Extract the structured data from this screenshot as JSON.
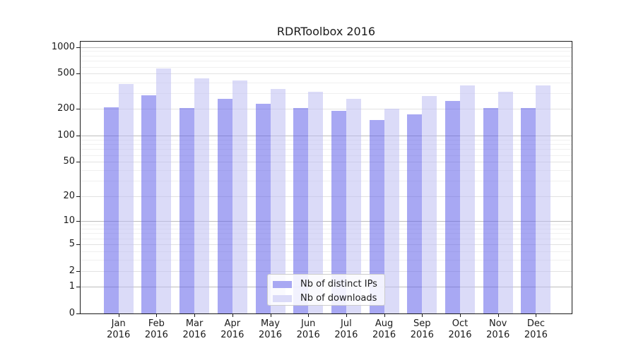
{
  "chart_data": {
    "type": "bar",
    "title": "RDRToolbox 2016",
    "xlabel": "",
    "ylabel": "",
    "x_months": [
      "Jan",
      "Feb",
      "Mar",
      "Apr",
      "May",
      "Jun",
      "Jul",
      "Aug",
      "Sep",
      "Oct",
      "Nov",
      "Dec"
    ],
    "x_year": "2016",
    "series": [
      {
        "name": "Nb of distinct IPs",
        "color": "#a8a8f3",
        "values": [
          210,
          285,
          205,
          260,
          230,
          205,
          190,
          150,
          175,
          245,
          205,
          205
        ]
      },
      {
        "name": "Nb of downloads",
        "color": "#dbdbf8",
        "values": [
          380,
          570,
          445,
          420,
          335,
          315,
          260,
          200,
          280,
          370,
          315,
          370
        ]
      }
    ],
    "y_ticks": [
      1000,
      500,
      200,
      100,
      50,
      20,
      10,
      5,
      2,
      1,
      0
    ],
    "y_scale": "log-like (position proportional to log10(1+value))",
    "ylim": [
      0,
      1150
    ],
    "grid": "horizontal major + minor gridlines, light gray",
    "legend": {
      "position": "lower center",
      "entries": [
        "Nb of distinct IPs",
        "Nb of downloads"
      ]
    }
  }
}
